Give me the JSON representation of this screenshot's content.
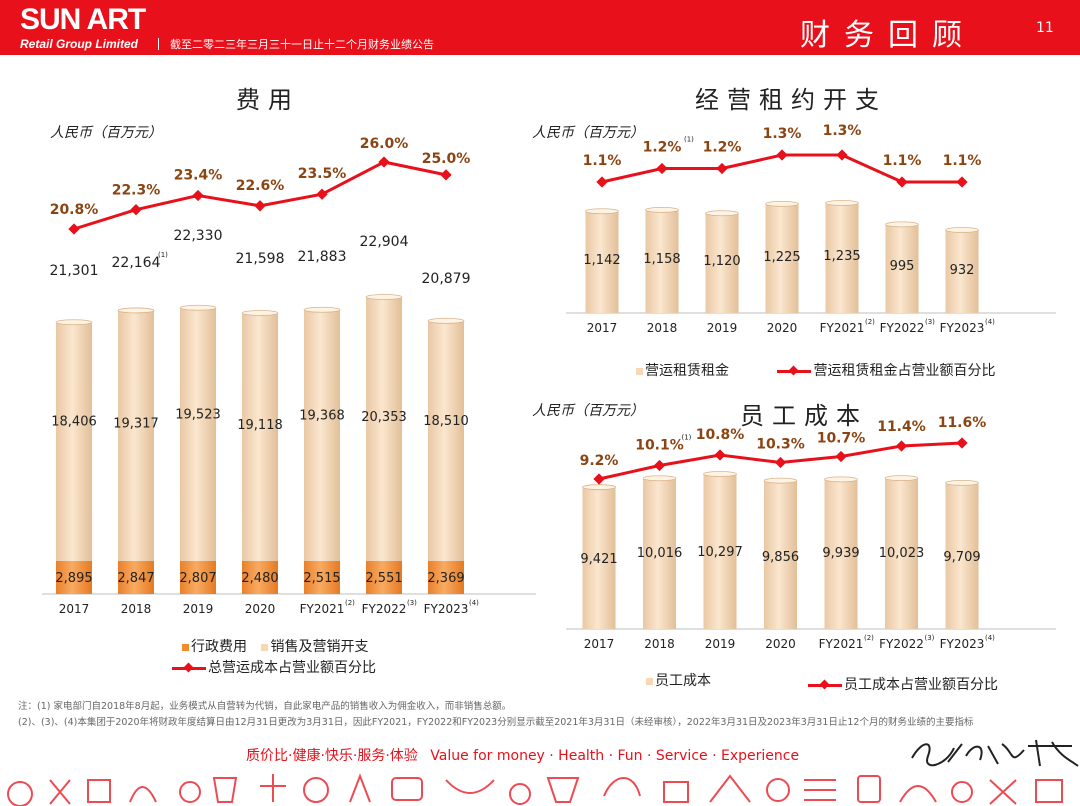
{
  "header": {
    "brand": "SUN ART",
    "brand_sub": "Retail Group Limited",
    "desc": "截至二零二三年三月三十一日止十二个月财务业绩公告",
    "title": "财务回顾",
    "page": "11"
  },
  "colors": {
    "red": "#e8101a",
    "brown": "#8b4513",
    "orange": "#f28b2b",
    "beige": "#f7d7b4"
  },
  "left": {
    "title": "费用",
    "unit": "人民币（百万元）",
    "legend": [
      "行政费用",
      "销售及营销开支",
      "总营运成本占营业额百分比"
    ]
  },
  "rent": {
    "title": "经营租约开支",
    "unit": "人民币（百万元）",
    "legend": [
      "营运租赁租金",
      "营运租赁租金占营业额百分比"
    ]
  },
  "staff": {
    "title": "员工成本",
    "unit": "人民币（百万元）",
    "legend": [
      "员工成本",
      "员工成本占营业额百分比"
    ]
  },
  "notes": [
    "注：(1) 家电部门自2018年8月起，业务模式从自营转为代销，自此家电产品的销售收入为佣金收入，而非销售总额。",
    "(2)、(3)、(4)本集团于2020年将财政年度结算日由12月31日更改为3月31日，因此FY2021，FY2022和FY2023分别显示截至2021年3月31日（未经审核），2022年3月31日及2023年3月31日止12个月的财务业绩的主要指标"
  ],
  "slogan": [
    "质价比·健康·快乐·服务·体验",
    "Value for money · Health · Fun · Service · Experience"
  ],
  "signature": "更生活 大润发",
  "chart_data": [
    {
      "id": "expenses",
      "type": "bar",
      "stacked": true,
      "categories": [
        "2017",
        "2018",
        "2019",
        "2020",
        "FY2021",
        "FY2022",
        "FY2023"
      ],
      "category_notes": [
        "",
        "",
        "",
        "",
        "(2)",
        "(3)",
        "(4)"
      ],
      "series": [
        {
          "name": "行政费用",
          "values": [
            2895,
            2847,
            2807,
            2480,
            2515,
            2551,
            2369
          ]
        },
        {
          "name": "销售及营销开支",
          "values": [
            18406,
            19317,
            19523,
            19118,
            19368,
            20353,
            18510
          ]
        }
      ],
      "totals": [
        21301,
        22164,
        22330,
        21598,
        21883,
        22904,
        20879
      ],
      "total_notes": [
        "",
        "(1)",
        "",
        "",
        "",
        "",
        ""
      ],
      "line": {
        "name": "总营运成本占营业额百分比",
        "values": [
          20.8,
          22.3,
          23.4,
          22.6,
          23.5,
          26.0,
          25.0
        ],
        "labels": [
          "20.8%",
          "22.3%",
          "23.4%",
          "22.6%",
          "23.5%",
          "26.0%",
          "25.0%"
        ]
      }
    },
    {
      "id": "rent",
      "type": "bar",
      "categories": [
        "2017",
        "2018",
        "2019",
        "2020",
        "FY2021",
        "FY2022",
        "FY2023"
      ],
      "category_notes": [
        "",
        "",
        "",
        "",
        "(2)",
        "(3)",
        "(4)"
      ],
      "series": [
        {
          "name": "营运租赁租金",
          "values": [
            1142,
            1158,
            1120,
            1225,
            1235,
            995,
            932
          ]
        }
      ],
      "line": {
        "name": "营运租赁租金占营业额百分比",
        "values": [
          1.1,
          1.2,
          1.2,
          1.3,
          1.3,
          1.1,
          1.1
        ],
        "labels": [
          "1.1%",
          "1.2%",
          "1.2%",
          "1.3%",
          "1.3%",
          "1.1%",
          "1.1%"
        ],
        "label_notes": [
          "",
          "(1)",
          "",
          "",
          "",
          "",
          ""
        ]
      }
    },
    {
      "id": "staff",
      "type": "bar",
      "categories": [
        "2017",
        "2018",
        "2019",
        "2020",
        "FY2021",
        "FY2022",
        "FY2023"
      ],
      "category_notes": [
        "",
        "",
        "",
        "",
        "(2)",
        "(3)",
        "(4)"
      ],
      "series": [
        {
          "name": "员工成本",
          "values": [
            9421,
            10016,
            10297,
            9856,
            9939,
            10023,
            9709
          ]
        }
      ],
      "line": {
        "name": "员工成本占营业额百分比",
        "values": [
          9.2,
          10.1,
          10.8,
          10.3,
          10.7,
          11.4,
          11.6
        ],
        "labels": [
          "9.2%",
          "10.1%",
          "10.8%",
          "10.3%",
          "10.7%",
          "11.4%",
          "11.6%"
        ],
        "label_notes": [
          "",
          "(1)",
          "",
          "",
          "",
          "",
          ""
        ]
      }
    }
  ]
}
